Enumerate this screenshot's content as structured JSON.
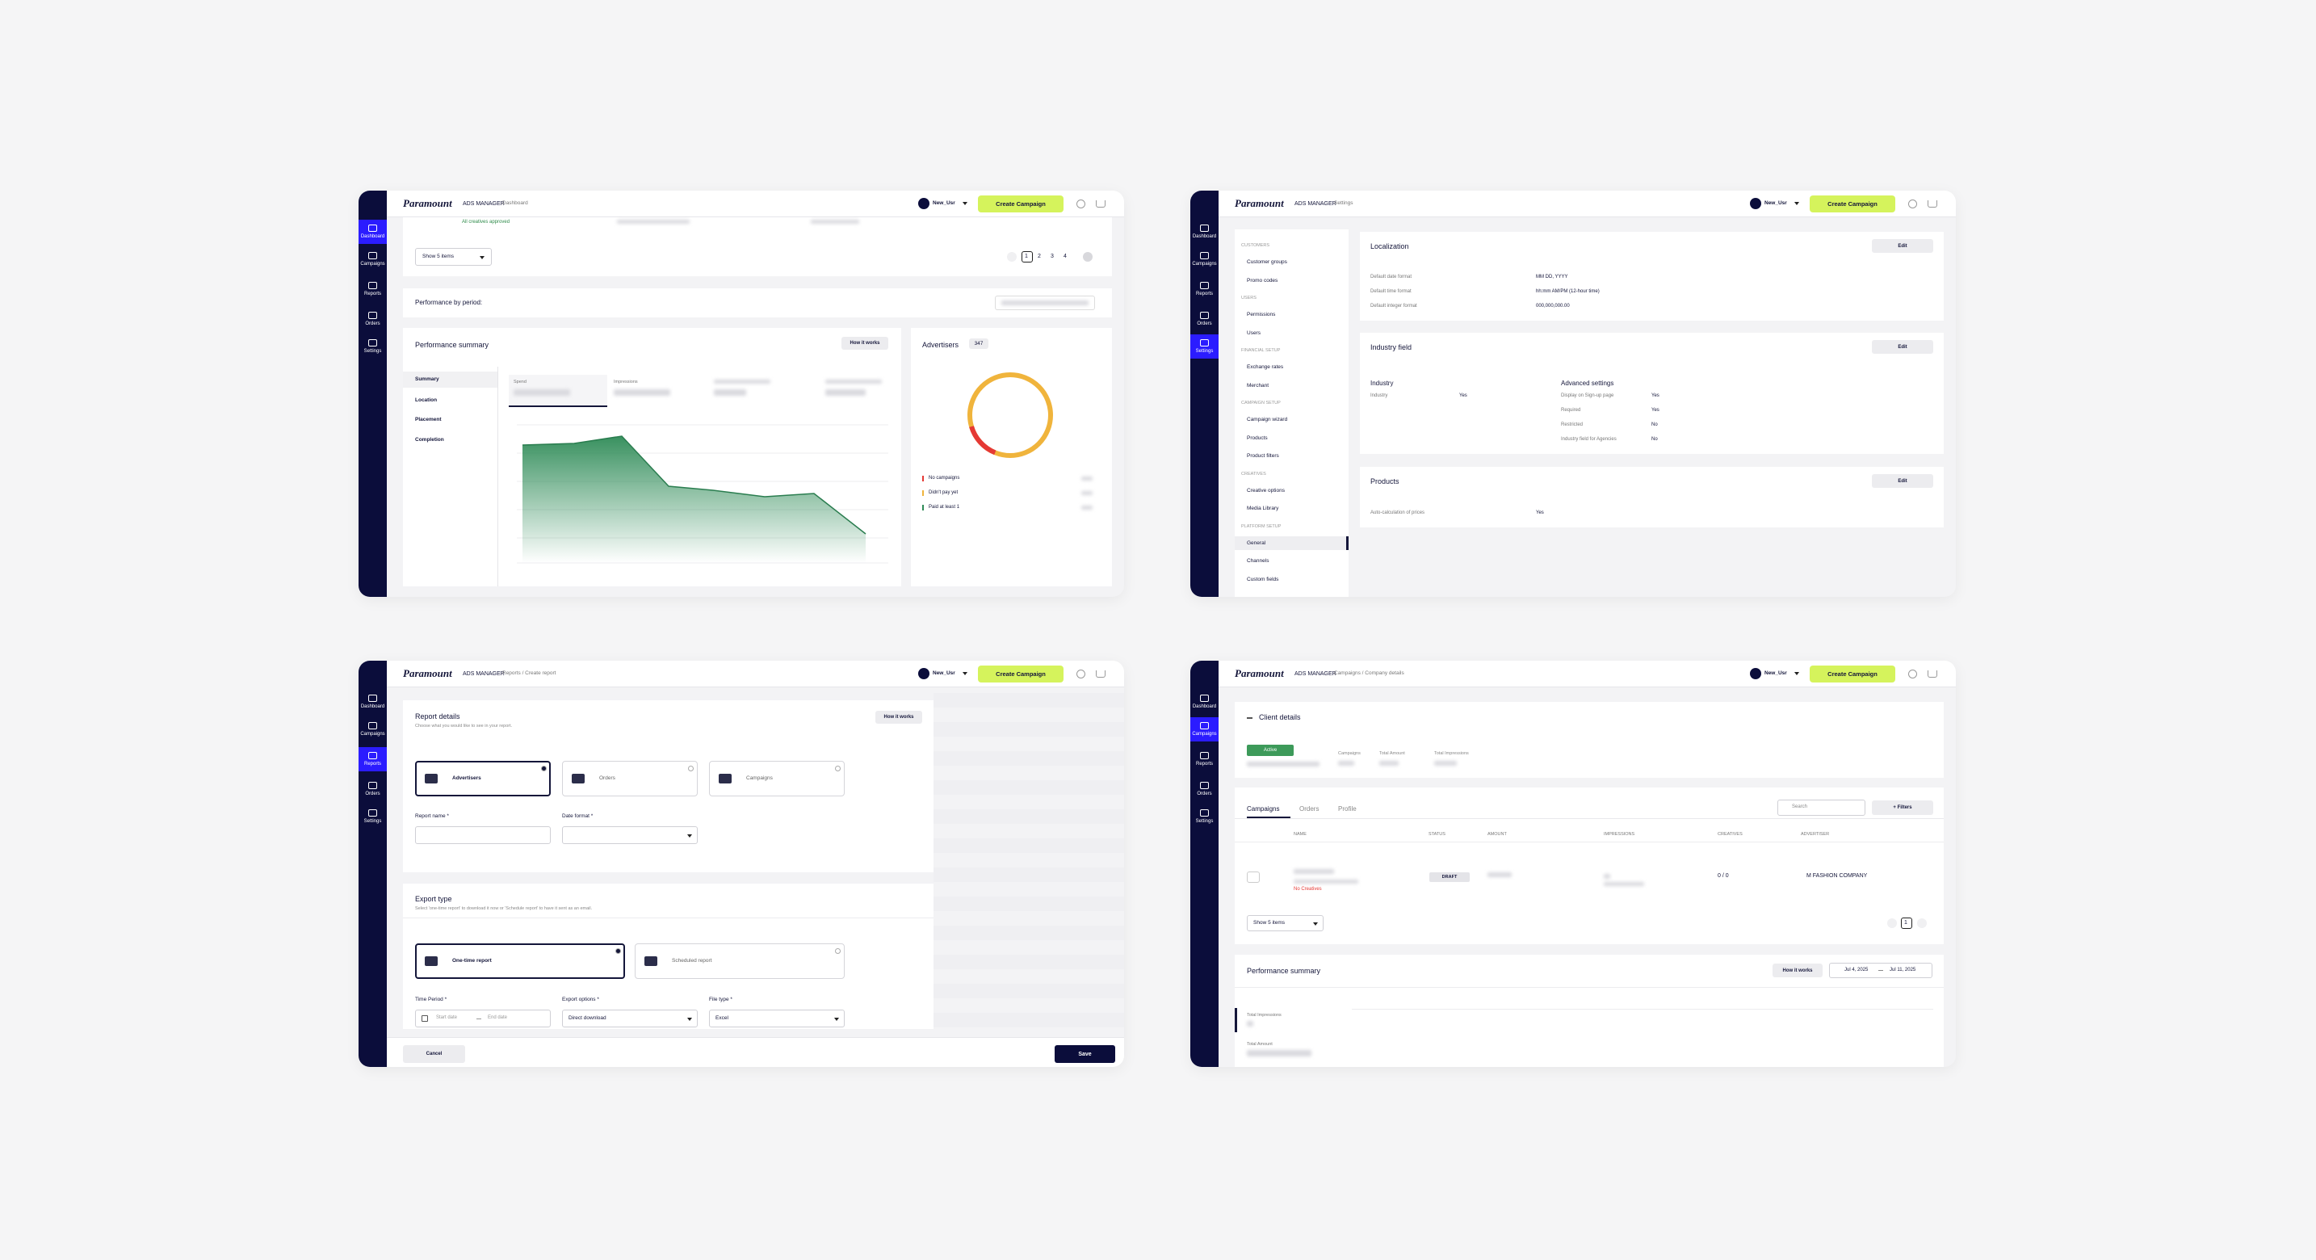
{
  "app": {
    "brand": "Paramount",
    "product": "ADS MANAGER",
    "user": "New_Usr",
    "create_button": "Create Campaign",
    "nav": [
      "Dashboard",
      "Campaigns",
      "Reports",
      "Orders",
      "Settings"
    ]
  },
  "dashboard": {
    "breadcrumb": "Dashboard",
    "creatives_status": "All creatives approved",
    "show_items": "Show 5 items",
    "pages": [
      1,
      2,
      3,
      4
    ],
    "period_title": "Performance by period:",
    "summary_title": "Performance summary",
    "how_it_works": "How it works",
    "tabs": [
      "Summary",
      "Location",
      "Placement",
      "Completion"
    ],
    "metrics": [
      "Spend",
      "Impressions"
    ],
    "advertisers_title": "Advertisers",
    "advertisers_count": 347,
    "legend": [
      "No campaigns",
      "Didn't pay yet",
      "Paid at least 1"
    ]
  },
  "settings": {
    "breadcrumb": "Settings",
    "menu": [
      {
        "title": "CUSTOMERS",
        "items": [
          "Customer groups",
          "Promo codes"
        ]
      },
      {
        "title": "USERS",
        "items": [
          "Permissions",
          "Users"
        ]
      },
      {
        "title": "FINANCIAL SETUP",
        "items": [
          "Exchange rates",
          "Merchant"
        ]
      },
      {
        "title": "CAMPAIGN SETUP",
        "items": [
          "Campaign wizard",
          "Products",
          "Product filters"
        ]
      },
      {
        "title": "CREATIVES",
        "items": [
          "Creative options",
          "Media Library"
        ]
      },
      {
        "title": "PLATFORM SETUP",
        "items": [
          "General",
          "Channels",
          "Custom fields"
        ]
      }
    ],
    "localization": {
      "title": "Localization",
      "edit": "Edit",
      "rows": [
        [
          "Default date format",
          "MM DD, YYYY"
        ],
        [
          "Default time format",
          "hh:mm AM/PM (12-hour time)"
        ],
        [
          "Default integer format",
          "000,000,000.00"
        ]
      ]
    },
    "industry": {
      "title": "Industry field",
      "edit": "Edit",
      "heading": "Industry",
      "label": "Industry",
      "value": "Yes",
      "advanced_title": "Advanced settings",
      "advanced": [
        [
          "Display on Sign-up page",
          "Yes"
        ],
        [
          "Required",
          "Yes"
        ],
        [
          "Restricted",
          "No"
        ],
        [
          "Industry field for Agencies",
          "No"
        ]
      ]
    },
    "products": {
      "title": "Products",
      "edit": "Edit",
      "rows": [
        [
          "Auto-calculation of prices",
          "Yes"
        ]
      ]
    }
  },
  "report": {
    "breadcrumb": "Reports / Create report",
    "details_title": "Report details",
    "details_subtitle": "Choose what you would like to see in your report.",
    "how_it_works": "How it works",
    "types": [
      "Advertisers",
      "Orders",
      "Campaigns"
    ],
    "name_label": "Report name *",
    "date_format_label": "Date format *",
    "export_title": "Export type",
    "export_subtitle": "Select 'one-time report' to download it now or 'Schedule report' to have it sent as an email.",
    "export_types": [
      "One-time report",
      "Scheduled report"
    ],
    "time_period_label": "Time Period *",
    "start_placeholder": "Start date",
    "end_placeholder": "End date",
    "export_options_label": "Export options *",
    "export_option": "Direct download",
    "file_type_label": "File type *",
    "file_type": "Excel",
    "cancel": "Cancel",
    "save": "Save"
  },
  "client": {
    "breadcrumb": "Campaigns / Company details",
    "title": "Client details",
    "status": "Active",
    "stats": [
      "Campaigns",
      "Total Amount",
      "Total Impressions"
    ],
    "tabs": [
      "Campaigns",
      "Orders",
      "Profile"
    ],
    "search": "Search",
    "filters": "+ Filters",
    "columns": [
      "NAME",
      "STATUS",
      "AMOUNT",
      "IMPRESSIONS",
      "CREATIVES",
      "ADVERTISER"
    ],
    "row": {
      "note": "No Creatives",
      "status": "DRAFT",
      "creatives": "0 / 0",
      "advertiser": "M FASHION COMPANY"
    },
    "show_items": "Show 5 items",
    "page": 1,
    "summary_title": "Performance summary",
    "how_it_works": "How it works",
    "date_from": "Jul 4, 2025",
    "date_to": "Jul 11, 2025",
    "metrics": [
      "Total Impressions",
      "Total Amount"
    ]
  }
}
